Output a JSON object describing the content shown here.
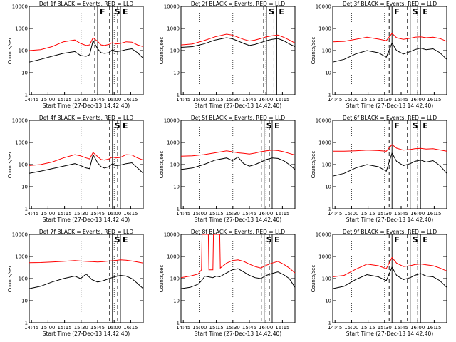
{
  "chart_data": [
    {
      "type": "line",
      "title": "Det 1f BLACK = Events, RED = LLD",
      "xlabel": "Start Time (27-Dec-13 14:42:40)",
      "ylabel": "Counts/sec",
      "yscale": "log",
      "ylim": [
        1,
        10000
      ],
      "xlim": [
        0,
        100
      ],
      "x_tick_labels": [
        "14:45",
        "15:00",
        "15:15",
        "15:30",
        "15:45",
        "16:00",
        "16:15"
      ],
      "y_tick_labels": [
        "1",
        "10",
        "100",
        "1000",
        "10000"
      ],
      "markers": [
        {
          "label": "F",
          "x": 60
        },
        {
          "label": "S",
          "x": 73
        },
        {
          "label": "E",
          "x": 80
        }
      ],
      "series": [
        {
          "color": "#ff0000",
          "x": [
            0,
            10,
            20,
            30,
            40,
            45,
            50,
            53,
            56,
            60,
            63,
            66,
            70,
            73,
            76,
            80,
            85,
            90,
            95,
            100
          ],
          "y": [
            100,
            110,
            150,
            250,
            300,
            210,
            170,
            180,
            380,
            260,
            180,
            170,
            190,
            230,
            200,
            210,
            250,
            240,
            180,
            150
          ]
        },
        {
          "color": "#000000",
          "x": [
            0,
            10,
            20,
            30,
            40,
            45,
            50,
            53,
            56,
            60,
            63,
            66,
            70,
            73,
            76,
            80,
            85,
            90,
            95,
            100
          ],
          "y": [
            30,
            40,
            55,
            75,
            90,
            60,
            55,
            65,
            280,
            120,
            80,
            75,
            80,
            110,
            90,
            95,
            110,
            120,
            80,
            45
          ]
        }
      ]
    },
    {
      "type": "line",
      "title": "Det 2f BLACK = Events, RED = LLD",
      "xlabel": "Start Time (27-Dec-13 14:42:40)",
      "ylabel": "Counts/sec",
      "yscale": "log",
      "ylim": [
        1,
        10000
      ],
      "xlim": [
        0,
        100
      ],
      "x_tick_labels": [
        "14:45",
        "15:00",
        "15:15",
        "15:30",
        "15:45",
        "16:00",
        "16:15"
      ],
      "y_tick_labels": [
        "1",
        "10",
        "100",
        "1000",
        "10000"
      ],
      "markers": [
        {
          "label": "S",
          "x": 75
        },
        {
          "label": "E",
          "x": 84
        }
      ],
      "series": [
        {
          "color": "#ff0000",
          "x": [
            0,
            10,
            20,
            30,
            40,
            45,
            50,
            55,
            60,
            65,
            70,
            75,
            80,
            85,
            90,
            95,
            100
          ],
          "y": [
            180,
            200,
            280,
            420,
            550,
            500,
            400,
            320,
            270,
            300,
            350,
            420,
            470,
            500,
            400,
            300,
            220
          ]
        },
        {
          "color": "#000000",
          "x": [
            0,
            10,
            20,
            30,
            40,
            45,
            50,
            55,
            60,
            65,
            70,
            75,
            80,
            85,
            90,
            95,
            100
          ],
          "y": [
            140,
            150,
            200,
            300,
            380,
            340,
            270,
            210,
            170,
            190,
            230,
            280,
            320,
            350,
            280,
            200,
            150
          ]
        }
      ]
    },
    {
      "type": "line",
      "title": "Det 3f BLACK = Events, RED = LLD",
      "xlabel": "Start Time (27-Dec-13 14:42:40)",
      "ylabel": "Counts/sec",
      "yscale": "log",
      "ylim": [
        1,
        10000
      ],
      "xlim": [
        0,
        100
      ],
      "x_tick_labels": [
        "14:45",
        "15:00",
        "15:15",
        "15:30",
        "15:45",
        "16:00",
        "16:15"
      ],
      "y_tick_labels": [
        "1",
        "10",
        "100",
        "1000",
        "10000"
      ],
      "markers": [
        {
          "label": "F",
          "x": 52
        },
        {
          "label": "S",
          "x": 68
        },
        {
          "label": "E",
          "x": 77
        }
      ],
      "series": [
        {
          "color": "#ff0000",
          "x": [
            0,
            10,
            20,
            30,
            40,
            47,
            52,
            56,
            62,
            68,
            72,
            77,
            82,
            88,
            94,
            100
          ],
          "y": [
            250,
            260,
            320,
            400,
            330,
            280,
            600,
            380,
            320,
            360,
            400,
            420,
            380,
            400,
            350,
            260
          ]
        },
        {
          "color": "#000000",
          "x": [
            0,
            10,
            20,
            30,
            40,
            47,
            52,
            56,
            62,
            68,
            72,
            77,
            82,
            88,
            94,
            100
          ],
          "y": [
            30,
            40,
            70,
            100,
            80,
            50,
            220,
            100,
            70,
            90,
            110,
            130,
            110,
            120,
            80,
            40
          ]
        }
      ]
    },
    {
      "type": "line",
      "title": "Det 4f BLACK = Events, RED = LLD",
      "xlabel": "Start Time (27-Dec-13 14:42:40)",
      "ylabel": "Counts/sec",
      "yscale": "log",
      "ylim": [
        1,
        10000
      ],
      "xlim": [
        0,
        100
      ],
      "x_tick_labels": [
        "14:45",
        "15:00",
        "15:15",
        "15:30",
        "15:45",
        "16:00",
        "16:15"
      ],
      "y_tick_labels": [
        "1",
        "10",
        "100",
        "1000",
        "10000"
      ],
      "markers": [
        {
          "label": "S",
          "x": 73
        },
        {
          "label": "E",
          "x": 80
        }
      ],
      "series": [
        {
          "color": "#ff0000",
          "x": [
            0,
            10,
            20,
            30,
            40,
            45,
            50,
            53,
            56,
            60,
            63,
            66,
            70,
            73,
            76,
            80,
            85,
            90,
            95,
            100
          ],
          "y": [
            90,
            100,
            130,
            200,
            280,
            250,
            200,
            180,
            350,
            230,
            170,
            160,
            180,
            220,
            200,
            210,
            280,
            270,
            200,
            160
          ]
        },
        {
          "color": "#000000",
          "x": [
            0,
            10,
            20,
            30,
            40,
            45,
            50,
            53,
            56,
            60,
            63,
            66,
            70,
            73,
            76,
            80,
            85,
            90,
            95,
            100
          ],
          "y": [
            40,
            50,
            65,
            85,
            110,
            90,
            70,
            65,
            280,
            120,
            80,
            70,
            80,
            110,
            90,
            95,
            110,
            120,
            70,
            40
          ]
        }
      ]
    },
    {
      "type": "line",
      "title": "Det 5f BLACK = Events, RED = LLD",
      "xlabel": "Start Time (27-Dec-13 14:42:40)",
      "ylabel": "Counts/sec",
      "yscale": "log",
      "ylim": [
        1,
        10000
      ],
      "xlim": [
        0,
        100
      ],
      "x_tick_labels": [
        "14:45",
        "15:00",
        "15:15",
        "15:30",
        "15:45",
        "16:00",
        "16:15"
      ],
      "y_tick_labels": [
        "1",
        "10",
        "100",
        "1000",
        "10000"
      ],
      "markers": [
        {
          "label": "S",
          "x": 73
        },
        {
          "label": "E",
          "x": 80
        }
      ],
      "series": [
        {
          "color": "#ff0000",
          "x": [
            0,
            10,
            20,
            30,
            40,
            45,
            50,
            55,
            60,
            65,
            70,
            75,
            80,
            85,
            90,
            95,
            100
          ],
          "y": [
            240,
            250,
            280,
            340,
            420,
            380,
            340,
            320,
            300,
            330,
            380,
            420,
            450,
            430,
            380,
            320,
            270
          ]
        },
        {
          "color": "#000000",
          "x": [
            0,
            10,
            20,
            30,
            40,
            45,
            50,
            55,
            60,
            65,
            70,
            75,
            80,
            85,
            90,
            95,
            100
          ],
          "y": [
            60,
            70,
            100,
            160,
            200,
            150,
            220,
            110,
            85,
            100,
            130,
            170,
            200,
            190,
            150,
            100,
            60
          ]
        }
      ]
    },
    {
      "type": "line",
      "title": "Det 6f BLACK = Events, RED = LLD",
      "xlabel": "Start Time (27-Dec-13 14:42:40)",
      "ylabel": "Counts/sec",
      "yscale": "log",
      "ylim": [
        1,
        10000
      ],
      "xlim": [
        0,
        100
      ],
      "x_tick_labels": [
        "14:45",
        "15:00",
        "15:15",
        "15:30",
        "15:45",
        "16:00",
        "16:15"
      ],
      "y_tick_labels": [
        "1",
        "10",
        "100",
        "1000",
        "10000"
      ],
      "markers": [
        {
          "label": "F",
          "x": 52
        },
        {
          "label": "S",
          "x": 68
        },
        {
          "label": "E",
          "x": 77
        }
      ],
      "series": [
        {
          "color": "#ff0000",
          "x": [
            0,
            10,
            20,
            30,
            40,
            47,
            52,
            56,
            62,
            68,
            72,
            77,
            82,
            88,
            94,
            100
          ],
          "y": [
            400,
            400,
            420,
            450,
            430,
            400,
            800,
            550,
            450,
            480,
            520,
            540,
            500,
            520,
            460,
            400
          ]
        },
        {
          "color": "#000000",
          "x": [
            0,
            10,
            20,
            30,
            40,
            47,
            52,
            56,
            62,
            68,
            72,
            77,
            82,
            88,
            94,
            100
          ],
          "y": [
            30,
            40,
            70,
            100,
            80,
            50,
            330,
            140,
            90,
            110,
            140,
            160,
            130,
            150,
            90,
            40
          ]
        }
      ]
    },
    {
      "type": "line",
      "title": "Det 7f BLACK = Events, RED = LLD",
      "xlabel": "Start Time (27-Dec-13 14:42:40)",
      "ylabel": "Counts/sec",
      "yscale": "log",
      "ylim": [
        1,
        10000
      ],
      "xlim": [
        0,
        100
      ],
      "x_tick_labels": [
        "14:45",
        "15:00",
        "15:15",
        "15:30",
        "15:45",
        "16:00",
        "16:15"
      ],
      "y_tick_labels": [
        "1",
        "10",
        "100",
        "1000",
        "10000"
      ],
      "markers": [
        {
          "label": "S",
          "x": 73
        },
        {
          "label": "E",
          "x": 80
        }
      ],
      "series": [
        {
          "color": "#ff0000",
          "x": [
            0,
            10,
            20,
            30,
            40,
            45,
            50,
            55,
            60,
            65,
            70,
            75,
            80,
            85,
            90,
            95,
            100
          ],
          "y": [
            520,
            530,
            560,
            600,
            650,
            620,
            600,
            580,
            560,
            580,
            620,
            650,
            700,
            680,
            620,
            560,
            500
          ]
        },
        {
          "color": "#000000",
          "x": [
            0,
            10,
            20,
            30,
            40,
            45,
            50,
            55,
            60,
            65,
            70,
            75,
            80,
            85,
            90,
            95,
            100
          ],
          "y": [
            35,
            45,
            70,
            100,
            130,
            100,
            160,
            90,
            70,
            80,
            100,
            120,
            140,
            130,
            100,
            60,
            35
          ]
        }
      ]
    },
    {
      "type": "line",
      "title": "Det 8f BLACK = Events, RED = LLD",
      "xlabel": "Start Time (27-Dec-13 14:42:40)",
      "ylabel": "Counts/sec",
      "yscale": "log",
      "ylim": [
        1,
        10000
      ],
      "xlim": [
        0,
        100
      ],
      "x_tick_labels": [
        "14:45",
        "15:00",
        "15:15",
        "15:30",
        "15:45",
        "16:00",
        "16:15"
      ],
      "y_tick_labels": [
        "1",
        "10",
        "100",
        "1000",
        "10000"
      ],
      "markers": [
        {
          "label": "S",
          "x": 73
        },
        {
          "label": "E",
          "x": 80
        }
      ],
      "series": [
        {
          "color": "#ff0000",
          "x": [
            0,
            8,
            15,
            18,
            18.5,
            24,
            24.5,
            28,
            28.5,
            34,
            34.5,
            40,
            45,
            50,
            55,
            60,
            65,
            70,
            75,
            80,
            85,
            90,
            95,
            100
          ],
          "y": [
            110,
            130,
            160,
            250,
            10000,
            10000,
            250,
            250,
            10000,
            10000,
            300,
            500,
            650,
            700,
            600,
            450,
            350,
            300,
            400,
            500,
            600,
            450,
            300,
            180
          ]
        },
        {
          "color": "#000000",
          "x": [
            0,
            8,
            15,
            18,
            21,
            24,
            28,
            31,
            34,
            40,
            45,
            50,
            55,
            60,
            65,
            70,
            75,
            80,
            85,
            90,
            95,
            100
          ],
          "y": [
            35,
            40,
            55,
            80,
            130,
            120,
            110,
            130,
            120,
            180,
            250,
            280,
            200,
            140,
            110,
            100,
            140,
            170,
            200,
            150,
            100,
            40
          ]
        }
      ]
    },
    {
      "type": "line",
      "title": "Det 9f BLACK = Events, RED = LLD",
      "xlabel": "Start Time (27-Dec-13 14:42:40)",
      "ylabel": "Counts/sec",
      "yscale": "log",
      "ylim": [
        1,
        10000
      ],
      "xlim": [
        0,
        100
      ],
      "x_tick_labels": [
        "14:45",
        "15:00",
        "15:15",
        "15:30",
        "15:45",
        "16:00",
        "16:15"
      ],
      "y_tick_labels": [
        "1",
        "10",
        "100",
        "1000",
        "10000"
      ],
      "markers": [
        {
          "label": "F",
          "x": 52
        },
        {
          "label": "S",
          "x": 68
        },
        {
          "label": "E",
          "x": 77
        }
      ],
      "series": [
        {
          "color": "#ff0000",
          "x": [
            0,
            10,
            20,
            30,
            40,
            47,
            52,
            56,
            62,
            68,
            72,
            77,
            82,
            88,
            94,
            100
          ],
          "y": [
            120,
            140,
            260,
            450,
            380,
            280,
            900,
            500,
            350,
            380,
            430,
            460,
            420,
            380,
            300,
            220
          ]
        },
        {
          "color": "#000000",
          "x": [
            0,
            10,
            20,
            30,
            40,
            47,
            52,
            56,
            62,
            68,
            72,
            77,
            82,
            88,
            94,
            100
          ],
          "y": [
            35,
            45,
            90,
            150,
            120,
            80,
            330,
            140,
            90,
            110,
            140,
            170,
            130,
            120,
            80,
            40
          ]
        }
      ]
    }
  ]
}
